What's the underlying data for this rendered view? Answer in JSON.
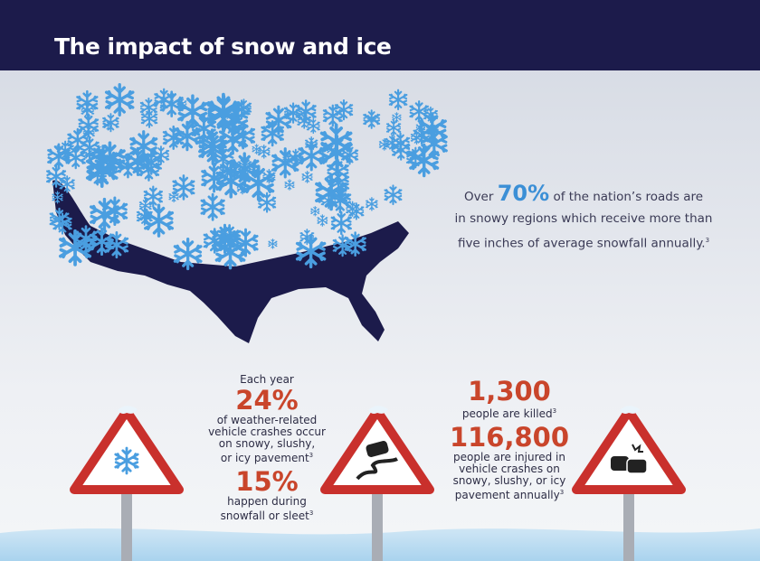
{
  "header": {
    "title": "The impact of snow and ice"
  },
  "map_stat": {
    "prefix": "Over",
    "value": "70%",
    "lines": [
      "of the nation’s roads are",
      "in snowy regions which receive more than",
      "five inches of average snowfall annually."
    ],
    "footnote": "3"
  },
  "crash_stats": {
    "intro": "Each year",
    "value": "24%",
    "lines": [
      "of weather-related",
      "vehicle crashes occur",
      "on snowy, slushy,",
      "or icy pavement"
    ],
    "footnote": "3"
  },
  "snowfall_stats": {
    "value": "15%",
    "lines": [
      "happen during",
      "snowfall or sleet"
    ],
    "footnote": "3"
  },
  "killed_stats": {
    "value": "1,300",
    "lines": [
      "people are killed"
    ],
    "footnote": "3"
  },
  "injured_stats": {
    "value": "116,800",
    "lines": [
      "people are injured in",
      "vehicle crashes on",
      "snowy, slushy, or icy",
      "pavement annually"
    ],
    "footnote": "3"
  }
}
